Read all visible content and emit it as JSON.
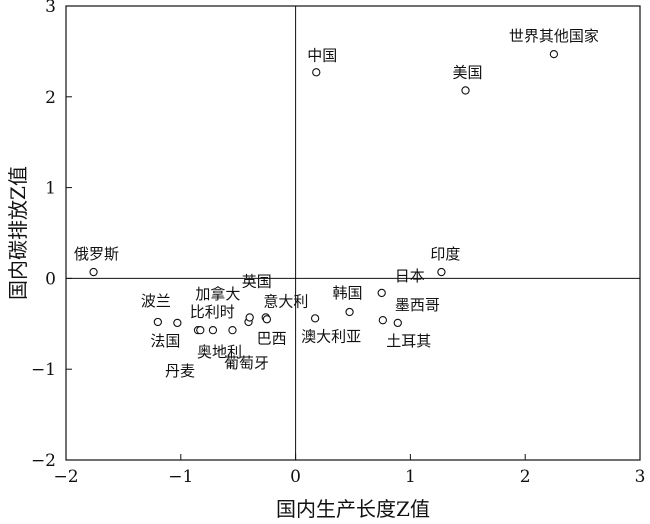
{
  "chart_data": {
    "type": "scatter",
    "title": "",
    "xlabel": "国内生产长度Z值",
    "ylabel": "国内碳排放Z值",
    "xlim": [
      -2,
      3
    ],
    "ylim": [
      -2,
      3
    ],
    "x_ticks": [
      "−2",
      "−1",
      "0",
      "1",
      "2",
      "3"
    ],
    "y_ticks": [
      "−2",
      "−1",
      "0",
      "1",
      "2",
      "3"
    ],
    "grid": false,
    "reference_lines": {
      "x": 0,
      "y": 0
    },
    "points": [
      {
        "label": "世界其他国家",
        "x": 2.25,
        "y": 2.47
      },
      {
        "label": "中国",
        "x": 0.18,
        "y": 2.27
      },
      {
        "label": "美国",
        "x": 1.48,
        "y": 2.07
      },
      {
        "label": "俄罗斯",
        "x": -1.76,
        "y": 0.07
      },
      {
        "label": "印度",
        "x": 1.27,
        "y": 0.07
      },
      {
        "label": "波兰",
        "x": -1.2,
        "y": -0.48
      },
      {
        "label": "法国",
        "x": -1.03,
        "y": -0.49
      },
      {
        "label": "丹麦",
        "x": -0.85,
        "y": -0.57
      },
      {
        "label": "比利时",
        "x": -0.83,
        "y": -0.57
      },
      {
        "label": "加拿大",
        "x": -0.72,
        "y": -0.57
      },
      {
        "label": "奥地利",
        "x": -0.55,
        "y": -0.57
      },
      {
        "label": "葡萄牙",
        "x": -0.41,
        "y": -0.48
      },
      {
        "label": "巴西",
        "x": -0.4,
        "y": -0.43
      },
      {
        "label": "英国",
        "x": -0.26,
        "y": -0.43
      },
      {
        "label": "意大利",
        "x": -0.25,
        "y": -0.45
      },
      {
        "label": "澳大利亚",
        "x": 0.17,
        "y": -0.44
      },
      {
        "label": "韩国",
        "x": 0.47,
        "y": -0.37
      },
      {
        "label": "日本",
        "x": 0.75,
        "y": -0.16
      },
      {
        "label": "墨西哥",
        "x": 0.76,
        "y": -0.46
      },
      {
        "label": "土耳其",
        "x": 0.89,
        "y": -0.49
      }
    ]
  }
}
